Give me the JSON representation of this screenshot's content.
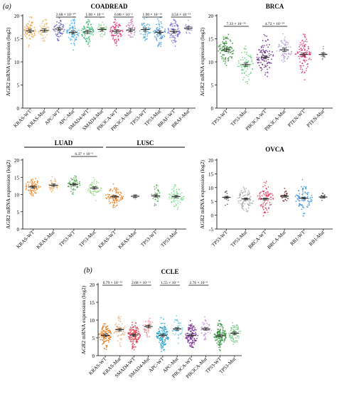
{
  "panel_labels": [
    "(a)",
    "(b)"
  ],
  "y_axis_label": "AGR2 mRNA expression (log2)",
  "chart_data": [
    {
      "type": "scatter",
      "title": "COADREAD",
      "ylabel": "AGR2 mRNA expression (log2)",
      "ylim": [
        0,
        20
      ],
      "yticks": [
        0,
        5,
        10,
        15,
        20
      ],
      "categories": [
        "KRAS-WT",
        "KRAS-Mut",
        "APC-WT",
        "APC-Mut",
        "SMAD4-WT",
        "SMAD4-Mut",
        "PIK3CA-WT",
        "PIK3CA-Mut",
        "TP53-WT",
        "TP53-Mut",
        "BRAF-WT",
        "BRAF-Mut"
      ],
      "colors": [
        "#f2a640",
        "#e7c07a",
        "#5a54c6",
        "#4fb3e6",
        "#3ec07a",
        "#8ed18f",
        "#e23a78",
        "#d07ab8",
        "#46a9d9",
        "#4f9ed6",
        "#7b6fd6",
        "#a79de0"
      ],
      "means": [
        16.7,
        16.8,
        17.1,
        16.4,
        16.5,
        17.0,
        16.6,
        16.9,
        17.0,
        16.4,
        16.6,
        17.3
      ],
      "spread": [
        2.2,
        2.0,
        2.0,
        2.3,
        2.4,
        2.0,
        2.4,
        2.1,
        2.2,
        2.3,
        2.3,
        1.6
      ],
      "point_counts": [
        70,
        55,
        45,
        80,
        85,
        35,
        80,
        40,
        45,
        80,
        80,
        20
      ],
      "comparisons": [
        {
          "pair": [
            2,
            3
          ],
          "label": "2.68 × 10⁻¹⁰"
        },
        {
          "pair": [
            4,
            5
          ],
          "label": "1.08 × 10⁻⁶"
        },
        {
          "pair": [
            6,
            7
          ],
          "label": "6.80 × 10⁻²"
        },
        {
          "pair": [
            8,
            9
          ],
          "label": "1.90 × 10⁻¹⁶"
        },
        {
          "pair": [
            10,
            11
          ],
          "label": "4.54 × 10⁻¹³"
        }
      ]
    },
    {
      "type": "scatter",
      "title": "BRCA",
      "ylabel": "AGR2 mRNA expression (log2)",
      "ylim": [
        0,
        20
      ],
      "yticks": [
        0,
        5,
        10,
        15,
        20
      ],
      "categories": [
        "TP53-WT",
        "TP53-Mut",
        "PIK3CA-WT",
        "PIK3CA-Mut",
        "PTEN-WT",
        "PTEN-Mut"
      ],
      "colors": [
        "#2f8f2f",
        "#66d17a",
        "#6a2a86",
        "#b8a2d6",
        "#e2336e",
        "#9a9a9a"
      ],
      "means": [
        12.6,
        9.4,
        11.0,
        12.6,
        11.6,
        11.6
      ],
      "spread": [
        2.8,
        3.6,
        3.6,
        2.4,
        3.4,
        1.6
      ],
      "point_counts": [
        90,
        70,
        100,
        70,
        100,
        15
      ],
      "comparisons": [
        {
          "pair": [
            0,
            1
          ],
          "label": "7.33 × 10⁻³⁵"
        },
        {
          "pair": [
            2,
            3
          ],
          "label": "4.72 × 10⁻¹⁴"
        }
      ]
    },
    {
      "type": "scatter",
      "title": "",
      "group_labels": [
        "LUAD",
        "LUSC"
      ],
      "ylabel": "AGR2 mRNA expression (log2)",
      "ylim": [
        0,
        20
      ],
      "yticks": [
        0,
        5,
        10,
        15,
        20
      ],
      "categories": [
        "KRAS-WT",
        "KRAS-Mut",
        "TP53-WT",
        "TP53-Mut",
        "KRAS-WT",
        "KRAS-Mut",
        "TP53-WT",
        "TP53-Mut"
      ],
      "colors": [
        "#f07f1f",
        "#f2b36a",
        "#4aa84a",
        "#9fdc8a",
        "#f07f1f",
        "#aaaaaa",
        "#4aa84a",
        "#7fdc8f"
      ],
      "means": [
        12.2,
        12.7,
        12.9,
        11.9,
        9.4,
        9.5,
        9.6,
        9.4
      ],
      "spread": [
        2.6,
        2.0,
        2.4,
        2.4,
        3.0,
        1.0,
        2.6,
        2.8
      ],
      "point_counts": [
        70,
        40,
        55,
        60,
        90,
        6,
        30,
        70
      ],
      "comparisons": [
        {
          "pair": [
            2,
            3
          ],
          "label": "6.37 × 10⁻⁶"
        }
      ]
    },
    {
      "type": "scatter",
      "title": "OVCA",
      "ylabel": "AGR2 mRNA expression (log2)",
      "ylim": [
        -5,
        20
      ],
      "yticks": [
        -5,
        0,
        5,
        10,
        15,
        20
      ],
      "categories": [
        "TP53-WT",
        "TP53-Mut",
        "BRCA-WT",
        "BRCA-Mut",
        "RB1-WT",
        "RB1-Mut"
      ],
      "colors": [
        "#5a5a5a",
        "#aaaaaa",
        "#e23a5a",
        "#7a3a3a",
        "#3a8fe0",
        "#555555"
      ],
      "means": [
        6.5,
        5.9,
        5.9,
        6.9,
        6.2,
        6.6
      ],
      "spread": [
        4.0,
        4.0,
        4.6,
        2.4,
        4.6,
        1.4
      ],
      "point_counts": [
        12,
        80,
        80,
        25,
        80,
        8
      ],
      "comparisons": []
    },
    {
      "type": "scatter",
      "title": "CCLE",
      "ylabel": "AGR2 mRNA expression (log2)",
      "ylim": [
        0,
        20
      ],
      "yticks": [
        0,
        5,
        10,
        15,
        20
      ],
      "categories": [
        "KRAS-WT",
        "KRAS-Mut",
        "SMAD4-WT",
        "SMAD4-Mut",
        "APC-WT",
        "APC-Mut",
        "PIK3CA-WT",
        "PIK3CA-Mut",
        "TP53-WT",
        "TP53-Mut"
      ],
      "colors": [
        "#e87a1f",
        "#f4b27a",
        "#e23a4a",
        "#f08a8a",
        "#1fa0c8",
        "#6fc8e6",
        "#7a2a96",
        "#c89ad8",
        "#2f8f3a",
        "#7fc88a"
      ],
      "means": [
        5.7,
        7.3,
        5.8,
        8.2,
        5.7,
        7.5,
        5.7,
        7.5,
        5.6,
        6.3
      ],
      "spread": [
        3.2,
        3.2,
        3.2,
        3.0,
        3.2,
        3.0,
        3.2,
        3.0,
        3.2,
        2.8
      ],
      "point_counts": [
        120,
        60,
        120,
        40,
        120,
        45,
        120,
        45,
        120,
        80
      ],
      "comparisons": [
        {
          "pair": [
            0,
            1
          ],
          "label": "6.79 × 10⁻¹³"
        },
        {
          "pair": [
            2,
            3
          ],
          "label": "2.68 × 10⁻¹¹"
        },
        {
          "pair": [
            4,
            5
          ],
          "label": "1.55 × 10⁻⁶"
        },
        {
          "pair": [
            6,
            7
          ],
          "label": "2.76 × 10⁻⁶"
        }
      ]
    }
  ]
}
